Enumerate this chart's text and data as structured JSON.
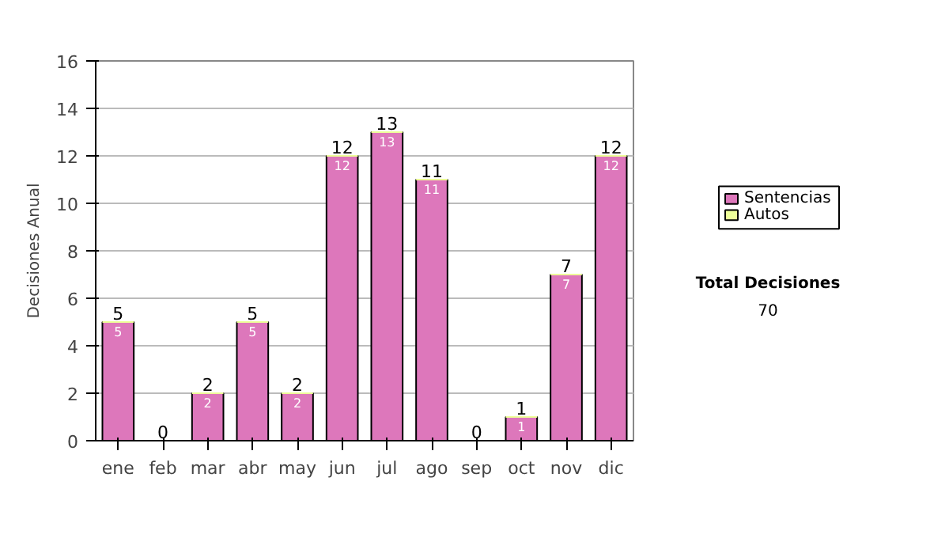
{
  "chart_data": {
    "type": "bar",
    "ylabel": "Decisiones Anual",
    "categories": [
      "ene",
      "feb",
      "mar",
      "abr",
      "may",
      "jun",
      "jul",
      "ago",
      "sep",
      "oct",
      "nov",
      "dic"
    ],
    "series": [
      {
        "name": "Sentencias",
        "color": "#dd77bb",
        "values": [
          5,
          0,
          2,
          5,
          2,
          12,
          13,
          11,
          0,
          1,
          7,
          12
        ],
        "value_labels": [
          "5",
          null,
          "2",
          "5",
          "2",
          "12",
          "13",
          "11",
          null,
          "1",
          "7",
          "12"
        ]
      },
      {
        "name": "Autos",
        "color": "#eeff99",
        "values": [
          0,
          0,
          0,
          0,
          0,
          0,
          0,
          0,
          0,
          0,
          0,
          0
        ],
        "value_labels": [
          null,
          null,
          null,
          null,
          null,
          null,
          null,
          null,
          null,
          null,
          null,
          null
        ]
      }
    ],
    "stacked": true,
    "totals": [
      "5",
      "0",
      "2",
      "5",
      "2",
      "12",
      "13",
      "11",
      "0",
      "1",
      "7",
      "12"
    ],
    "ylim": [
      0,
      16
    ],
    "yticks": [
      0,
      2,
      4,
      6,
      8,
      10,
      12,
      14,
      16
    ],
    "grid": "y",
    "legend": "right",
    "annotations": [
      "Total Decisiones",
      "70"
    ]
  }
}
